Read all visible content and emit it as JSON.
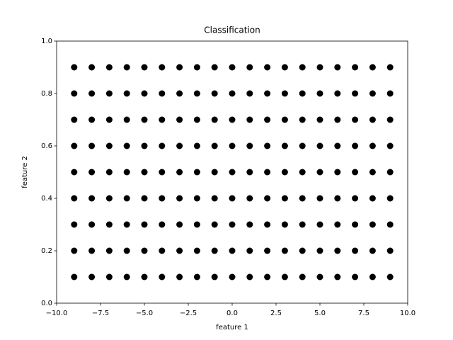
{
  "chart_data": {
    "type": "scatter",
    "title": "Classification",
    "x_label": "feature 1",
    "y_label": "feature 2",
    "xlim": [
      -10,
      10
    ],
    "ylim": [
      0,
      1
    ],
    "xticks": [
      {
        "value": -10,
        "label": "−10.0"
      },
      {
        "value": -7.5,
        "label": "−7.5"
      },
      {
        "value": -5,
        "label": "−5.0"
      },
      {
        "value": -2.5,
        "label": "−2.5"
      },
      {
        "value": 0,
        "label": "0.0"
      },
      {
        "value": 2.5,
        "label": "2.5"
      },
      {
        "value": 5,
        "label": "5.0"
      },
      {
        "value": 7.5,
        "label": "7.5"
      },
      {
        "value": 10,
        "label": "10.0"
      }
    ],
    "yticks": [
      {
        "value": 0,
        "label": "0.0"
      },
      {
        "value": 0.2,
        "label": "0.2"
      },
      {
        "value": 0.4,
        "label": "0.4"
      },
      {
        "value": 0.6,
        "label": "0.6"
      },
      {
        "value": 0.8,
        "label": "0.8"
      },
      {
        "value": 1,
        "label": "1.0"
      }
    ],
    "series": [
      {
        "color": "#000000",
        "x": [
          -9,
          -8,
          -7,
          -6,
          -5,
          -4,
          -3,
          -2,
          -1,
          0,
          1,
          2,
          3,
          4,
          5,
          6,
          7,
          8,
          9,
          -9,
          -8,
          -7,
          -6,
          -5,
          -4,
          -3,
          -2,
          -1,
          0,
          1,
          2,
          3,
          4,
          5,
          6,
          7,
          8,
          9,
          -9,
          -8,
          -7,
          -6,
          -5,
          -4,
          -3,
          -2,
          -1,
          0,
          1,
          2,
          3,
          4,
          5,
          6,
          7,
          8,
          9,
          -9,
          -8,
          -7,
          -6,
          -5,
          -4,
          -3,
          -2,
          -1,
          0,
          1,
          2,
          3,
          4,
          5,
          6,
          7,
          8,
          9,
          -9,
          -8,
          -7,
          -6,
          -5,
          -4,
          -3,
          -2,
          -1,
          0,
          1,
          2,
          3,
          4,
          5,
          6,
          7,
          8,
          9,
          -9,
          -8,
          -7,
          -6,
          -5,
          -4,
          -3,
          -2,
          -1,
          0,
          1,
          2,
          3,
          4,
          5,
          6,
          7,
          8,
          9,
          -9,
          -8,
          -7,
          -6,
          -5,
          -4,
          -3,
          -2,
          -1,
          0,
          1,
          2,
          3,
          4,
          5,
          6,
          7,
          8,
          9,
          -9,
          -8,
          -7,
          -6,
          -5,
          -4,
          -3,
          -2,
          -1,
          0,
          1,
          2,
          3,
          4,
          5,
          6,
          7,
          8,
          9,
          -9,
          -8,
          -7,
          -6,
          -5,
          -4,
          -3,
          -2,
          -1,
          0,
          1,
          2,
          3,
          4,
          5,
          6,
          7,
          8,
          9
        ],
        "values": [
          0.1,
          0.1,
          0.1,
          0.1,
          0.1,
          0.1,
          0.1,
          0.1,
          0.1,
          0.1,
          0.1,
          0.1,
          0.1,
          0.1,
          0.1,
          0.1,
          0.1,
          0.1,
          0.1,
          0.2,
          0.2,
          0.2,
          0.2,
          0.2,
          0.2,
          0.2,
          0.2,
          0.2,
          0.2,
          0.2,
          0.2,
          0.2,
          0.2,
          0.2,
          0.2,
          0.2,
          0.2,
          0.2,
          0.3,
          0.3,
          0.3,
          0.3,
          0.3,
          0.3,
          0.3,
          0.3,
          0.3,
          0.3,
          0.3,
          0.3,
          0.3,
          0.3,
          0.3,
          0.3,
          0.3,
          0.3,
          0.3,
          0.4,
          0.4,
          0.4,
          0.4,
          0.4,
          0.4,
          0.4,
          0.4,
          0.4,
          0.4,
          0.4,
          0.4,
          0.4,
          0.4,
          0.4,
          0.4,
          0.4,
          0.4,
          0.4,
          0.5,
          0.5,
          0.5,
          0.5,
          0.5,
          0.5,
          0.5,
          0.5,
          0.5,
          0.5,
          0.5,
          0.5,
          0.5,
          0.5,
          0.5,
          0.5,
          0.5,
          0.5,
          0.5,
          0.6,
          0.6,
          0.6,
          0.6,
          0.6,
          0.6,
          0.6,
          0.6,
          0.6,
          0.6,
          0.6,
          0.6,
          0.6,
          0.6,
          0.6,
          0.6,
          0.6,
          0.6,
          0.6,
          0.7,
          0.7,
          0.7,
          0.7,
          0.7,
          0.7,
          0.7,
          0.7,
          0.7,
          0.7,
          0.7,
          0.7,
          0.7,
          0.7,
          0.7,
          0.7,
          0.7,
          0.7,
          0.7,
          0.8,
          0.8,
          0.8,
          0.8,
          0.8,
          0.8,
          0.8,
          0.8,
          0.8,
          0.8,
          0.8,
          0.8,
          0.8,
          0.8,
          0.8,
          0.8,
          0.8,
          0.8,
          0.8,
          0.9,
          0.9,
          0.9,
          0.9,
          0.9,
          0.9,
          0.9,
          0.9,
          0.9,
          0.9,
          0.9,
          0.9,
          0.9,
          0.9,
          0.9,
          0.9,
          0.9,
          0.9,
          0.9
        ]
      }
    ]
  }
}
